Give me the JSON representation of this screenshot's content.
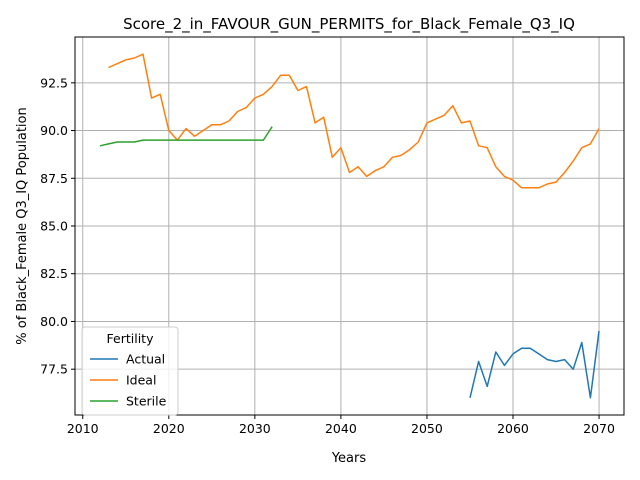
{
  "chart_data": {
    "type": "line",
    "title": "Score_2_in_FAVOUR_GUN_PERMITS_for_Black_Female_Q3_IQ",
    "xlabel": "Years",
    "ylabel": "% of Black_Female Q3_IQ Population",
    "xlim": [
      2009.1,
      2072.9
    ],
    "ylim": [
      75.1,
      94.9
    ],
    "xticks": [
      2010,
      2020,
      2030,
      2040,
      2050,
      2060,
      2070
    ],
    "yticks": [
      77.5,
      80.0,
      82.5,
      85.0,
      87.5,
      90.0,
      92.5
    ],
    "xtick_labels": [
      "2010",
      "2020",
      "2030",
      "2040",
      "2050",
      "2060",
      "2070"
    ],
    "ytick_labels": [
      "77.5",
      "80.0",
      "82.5",
      "85.0",
      "87.5",
      "90.0",
      "92.5"
    ],
    "grid": true,
    "legend": {
      "title": "Fertility",
      "placement": "lower-left"
    },
    "series": [
      {
        "name": "Actual",
        "color": "#1f77b4",
        "x": [
          2055,
          2056,
          2057,
          2058,
          2059,
          2060,
          2061,
          2062,
          2063,
          2064,
          2065,
          2066,
          2067,
          2068,
          2069,
          2070
        ],
        "y": [
          76.0,
          77.9,
          76.6,
          78.4,
          77.7,
          78.3,
          78.6,
          78.6,
          78.3,
          78.0,
          77.9,
          78.0,
          77.5,
          78.9,
          76.0,
          79.5
        ]
      },
      {
        "name": "Ideal",
        "color": "#ff7f0e",
        "x": [
          2013,
          2014,
          2015,
          2016,
          2017,
          2018,
          2019,
          2020,
          2021,
          2022,
          2023,
          2024,
          2025,
          2026,
          2027,
          2028,
          2029,
          2030,
          2031,
          2032,
          2033,
          2034,
          2035,
          2036,
          2037,
          2038,
          2039,
          2040,
          2041,
          2042,
          2043,
          2044,
          2045,
          2046,
          2047,
          2048,
          2049,
          2050,
          2051,
          2052,
          2053,
          2054,
          2055,
          2056,
          2057,
          2058,
          2059,
          2060,
          2061,
          2062,
          2063,
          2064,
          2065,
          2066,
          2067,
          2068,
          2069,
          2070
        ],
        "y": [
          93.3,
          93.5,
          93.7,
          93.8,
          94.0,
          91.7,
          91.9,
          90.0,
          89.5,
          90.1,
          89.7,
          90.0,
          90.3,
          90.3,
          90.5,
          91.0,
          91.2,
          91.7,
          91.9,
          92.3,
          92.9,
          92.9,
          92.1,
          92.3,
          90.4,
          90.7,
          88.6,
          89.1,
          87.8,
          88.1,
          87.6,
          87.9,
          88.1,
          88.6,
          88.7,
          89.0,
          89.4,
          90.4,
          90.6,
          90.8,
          91.3,
          90.4,
          90.5,
          89.2,
          89.1,
          88.1,
          87.6,
          87.4,
          87.0,
          87.0,
          87.0,
          87.2,
          87.3,
          87.8,
          88.4,
          89.1,
          89.3,
          90.1
        ]
      },
      {
        "name": "Sterile",
        "color": "#2ca02c",
        "x": [
          2012,
          2013,
          2014,
          2015,
          2016,
          2017,
          2018,
          2019,
          2020,
          2021,
          2022,
          2023,
          2024,
          2025,
          2026,
          2027,
          2028,
          2029,
          2030,
          2031,
          2032
        ],
        "y": [
          89.2,
          89.3,
          89.4,
          89.4,
          89.4,
          89.5,
          89.5,
          89.5,
          89.5,
          89.5,
          89.5,
          89.5,
          89.5,
          89.5,
          89.5,
          89.5,
          89.5,
          89.5,
          89.5,
          89.5,
          90.2
        ]
      }
    ]
  }
}
